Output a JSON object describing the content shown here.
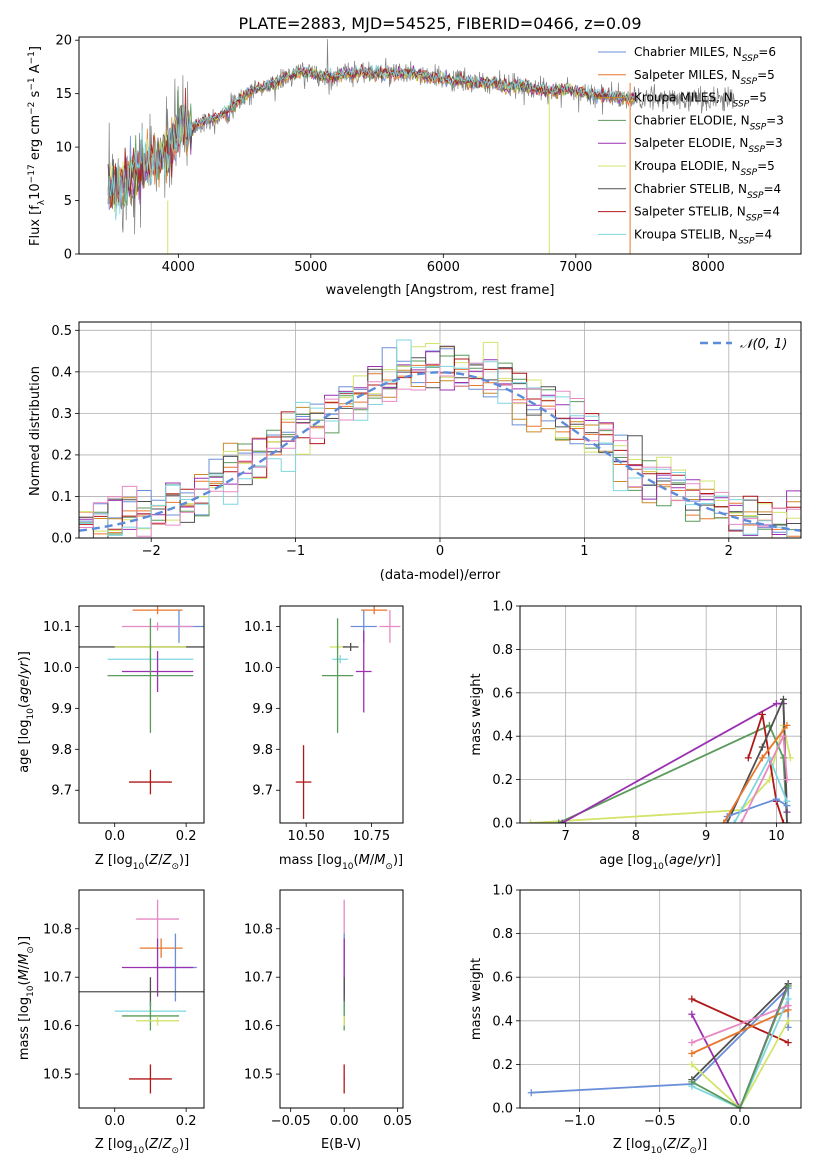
{
  "figure_title": "PLATE=2883, MJD=54525, FIBERID=0466, z=0.09",
  "colors": {
    "Chabrier MILES": "#6a8fd8",
    "Salpeter MILES": "#e8772e",
    "Kroupa MILES": "#c98a2a",
    "Chabrier ELODIE": "#5a9a5a",
    "Salpeter ELODIE": "#9b30b0",
    "Kroupa ELODIE": "#d4e36a",
    "Chabrier STELIB": "#505050",
    "Salpeter STELIB": "#b01818",
    "Kroupa STELIB": "#7fd6e0",
    "Pink": "#e78ac3",
    "Gray": "#808080",
    "Normal": "#5b8bd9"
  },
  "chart_data": [
    {
      "id": "spectrum",
      "type": "line",
      "title": "PLATE=2883, MJD=54525, FIBERID=0466, z=0.09",
      "xlabel": "wavelength [Angstrom, rest frame]",
      "ylabel": "Flux [f_λ 10^-17 erg cm^-2 s^-1 A^-1]",
      "ylabel_parts": {
        "a": "Flux [f",
        "b": "λ",
        "c": "10",
        "d": "−17",
        "e": " erg cm",
        "f": "−2",
        "g": " s",
        "h": "−1",
        "i": " A",
        "j": "−1",
        "k": "]"
      },
      "xlim": [
        3250,
        8700
      ],
      "ylim": [
        0,
        20.3
      ],
      "xticks": [
        4000,
        5000,
        6000,
        7000,
        8000
      ],
      "yticks": [
        0,
        5,
        10,
        15,
        20
      ],
      "continuum": [
        [
          3470,
          6.0
        ],
        [
          3550,
          6.5
        ],
        [
          3650,
          7.5
        ],
        [
          3750,
          8.3
        ],
        [
          3850,
          8.8
        ],
        [
          3950,
          10.0
        ],
        [
          4000,
          11.8
        ],
        [
          4100,
          11.8
        ],
        [
          4200,
          12.5
        ],
        [
          4300,
          12.8
        ],
        [
          4400,
          13.6
        ],
        [
          4500,
          14.8
        ],
        [
          4600,
          15.5
        ],
        [
          4700,
          15.8
        ],
        [
          4800,
          16.4
        ],
        [
          4900,
          17.0
        ],
        [
          5000,
          17.0
        ],
        [
          5100,
          16.6
        ],
        [
          5200,
          16.6
        ],
        [
          5300,
          16.9
        ],
        [
          5400,
          17.0
        ],
        [
          5500,
          16.9
        ],
        [
          5600,
          16.8
        ],
        [
          5700,
          16.9
        ],
        [
          5800,
          16.8
        ],
        [
          5900,
          16.5
        ],
        [
          6000,
          16.4
        ],
        [
          6100,
          16.2
        ],
        [
          6200,
          16.1
        ],
        [
          6300,
          16.0
        ],
        [
          6400,
          15.9
        ],
        [
          6500,
          15.6
        ],
        [
          6600,
          15.8
        ],
        [
          6700,
          15.4
        ],
        [
          6800,
          15.2
        ],
        [
          6900,
          15.4
        ],
        [
          7000,
          15.2
        ],
        [
          7100,
          15.0
        ],
        [
          7200,
          14.8
        ],
        [
          7300,
          14.7
        ],
        [
          7400,
          14.5
        ]
      ],
      "data_range": [
        3470,
        8200
      ],
      "models_range": [
        3470,
        7450
      ],
      "spike_lines": [
        {
          "x": 3920,
          "y1": 0,
          "y2": 5
        },
        {
          "x": 6800,
          "y1": 0,
          "y2": 15
        },
        {
          "x": 7410,
          "y1": 0,
          "y2": 16
        }
      ],
      "series": [
        {
          "name": "Chabrier MILES",
          "n": "6"
        },
        {
          "name": "Salpeter MILES",
          "n": "5"
        },
        {
          "name": "Kroupa MILES",
          "n": "5"
        },
        {
          "name": "Chabrier ELODIE",
          "n": "3"
        },
        {
          "name": "Salpeter ELODIE",
          "n": "3"
        },
        {
          "name": "Kroupa ELODIE",
          "n": "5"
        },
        {
          "name": "Chabrier STELIB",
          "n": "4"
        },
        {
          "name": "Salpeter STELIB",
          "n": "4"
        },
        {
          "name": "Kroupa STELIB",
          "n": "4"
        }
      ],
      "legend_placement": "upper-right",
      "legend_n_label": "N",
      "legend_n_sub": "SSP"
    },
    {
      "id": "residuals",
      "type": "step-histogram",
      "xlabel": "(data-model)/error",
      "ylabel": "Normed distribution",
      "xlim": [
        -2.5,
        2.5
      ],
      "ylim": [
        0,
        0.52
      ],
      "xticks": [
        -2,
        -1,
        0,
        1,
        2
      ],
      "xtick_labels": [
        "−2",
        "−1",
        "0",
        "1",
        "2"
      ],
      "yticks": [
        0.0,
        0.1,
        0.2,
        0.3,
        0.4,
        0.5
      ],
      "ytick_labels": [
        "0.0",
        "0.1",
        "0.2",
        "0.3",
        "0.4",
        "0.5"
      ],
      "grid": true,
      "bin_width": 0.1,
      "normal_label": "𝒩(0, 1)",
      "legend_placement": "upper-right"
    },
    {
      "id": "age_vs_Z",
      "type": "errorbar",
      "xlabel": "Z [log10(Z/Z⊙)]",
      "ylabel": "age [log10(age/yr)]",
      "xlim": [
        -0.1,
        0.25
      ],
      "ylim": [
        9.62,
        10.15
      ],
      "xticks": [
        0.0,
        0.2
      ],
      "xtick_labels": [
        "0.0",
        "0.2"
      ],
      "yticks": [
        9.7,
        9.8,
        9.9,
        10.0,
        10.1
      ],
      "ytick_labels": [
        "9.7",
        "9.8",
        "9.9",
        "10.0",
        "10.1"
      ],
      "points": [
        {
          "c": "Salpeter MILES",
          "x": 0.12,
          "y": 10.14,
          "ex": 0.07,
          "ey": 0.01
        },
        {
          "c": "Chabrier MILES",
          "x": 0.18,
          "y": 10.1,
          "ex": 0.07,
          "ey": 0.04
        },
        {
          "c": "Pink",
          "x": 0.12,
          "y": 10.1,
          "ex": 0.1,
          "ey": 0.01
        },
        {
          "c": "Chabrier STELIB",
          "x": 0.1,
          "y": 10.05,
          "ex": 0.2,
          "ey": 0.005
        },
        {
          "c": "Kroupa ELODIE",
          "x": 0.1,
          "y": 10.05,
          "ex": 0.1,
          "ey": 0.01
        },
        {
          "c": "Kroupa STELIB",
          "x": 0.1,
          "y": 10.02,
          "ex": 0.12,
          "ey": 0.01
        },
        {
          "c": "Salpeter ELODIE",
          "x": 0.12,
          "y": 9.99,
          "ex": 0.1,
          "ey": 0.05
        },
        {
          "c": "Chabrier ELODIE",
          "x": 0.1,
          "y": 9.98,
          "ex": 0.12,
          "ey": 0.14
        },
        {
          "c": "Salpeter STELIB",
          "x": 0.1,
          "y": 9.72,
          "ex": 0.06,
          "ey": 0.03
        }
      ]
    },
    {
      "id": "age_vs_mass",
      "type": "errorbar",
      "xlabel": "mass [log10(M/M⊙)]",
      "xlim": [
        10.4,
        10.87
      ],
      "ylim": [
        9.62,
        10.15
      ],
      "xticks": [
        10.5,
        10.75
      ],
      "xtick_labels": [
        "10.50",
        "10.75"
      ],
      "yticks": [
        9.7,
        9.8,
        9.9,
        10.0,
        10.1
      ],
      "ytick_labels": [
        "9.7",
        "9.8",
        "9.9",
        "10.0",
        "10.1"
      ],
      "points": [
        {
          "c": "Salpeter MILES",
          "x": 10.76,
          "y": 10.14,
          "ex": 0.05,
          "ey": 0.01
        },
        {
          "c": "Chabrier MILES",
          "x": 10.72,
          "y": 10.1,
          "ex": 0.05,
          "ey": 0.04
        },
        {
          "c": "Pink",
          "x": 10.82,
          "y": 10.1,
          "ex": 0.04,
          "ey": 0.04
        },
        {
          "c": "Kroupa ELODIE",
          "x": 10.62,
          "y": 10.05,
          "ex": 0.03,
          "ey": 0.01
        },
        {
          "c": "Chabrier STELIB",
          "x": 10.67,
          "y": 10.05,
          "ex": 0.03,
          "ey": 0.01
        },
        {
          "c": "Kroupa STELIB",
          "x": 10.63,
          "y": 10.02,
          "ex": 0.03,
          "ey": 0.01
        },
        {
          "c": "Salpeter ELODIE",
          "x": 10.72,
          "y": 9.99,
          "ex": 0.03,
          "ey": 0.1
        },
        {
          "c": "Chabrier ELODIE",
          "x": 10.62,
          "y": 9.98,
          "ex": 0.06,
          "ey": 0.14
        },
        {
          "c": "Salpeter STELIB",
          "x": 10.49,
          "y": 9.72,
          "ex": 0.03,
          "ey": 0.09
        }
      ]
    },
    {
      "id": "weight_vs_age",
      "type": "line",
      "xlabel": "age [log10(age/yr)]",
      "ylabel": "mass weight",
      "xlim": [
        6.35,
        10.35
      ],
      "ylim": [
        0,
        1.0
      ],
      "xticks": [
        7,
        8,
        9,
        10
      ],
      "xtick_labels": [
        "7",
        "8",
        "9",
        "10"
      ],
      "yticks": [
        0.0,
        0.2,
        0.4,
        0.6,
        0.8,
        1.0
      ],
      "ytick_labels": [
        "0.0",
        "0.2",
        "0.4",
        "0.6",
        "0.8",
        "1.0"
      ],
      "grid": true,
      "series": [
        {
          "c": "Kroupa ELODIE",
          "pts": [
            [
              6.5,
              0.0
            ],
            [
              9.5,
              0.06
            ],
            [
              9.9,
              0.2
            ],
            [
              10.1,
              0.45
            ],
            [
              10.2,
              0.3
            ]
          ]
        },
        {
          "c": "Chabrier ELODIE",
          "pts": [
            [
              6.9,
              0.0
            ],
            [
              9.9,
              0.45
            ],
            [
              10.1,
              0.3
            ],
            [
              10.15,
              0.0
            ]
          ]
        },
        {
          "c": "Salpeter ELODIE",
          "pts": [
            [
              6.95,
              0.0
            ],
            [
              10.0,
              0.55
            ],
            [
              10.1,
              0.55
            ],
            [
              10.15,
              0.05
            ]
          ]
        },
        {
          "c": "Salpeter STELIB",
          "pts": [
            [
              9.6,
              0.3
            ],
            [
              9.8,
              0.5
            ],
            [
              10.0,
              0.1
            ],
            [
              10.1,
              0.0
            ]
          ]
        },
        {
          "c": "Chabrier STELIB",
          "pts": [
            [
              9.3,
              0.0
            ],
            [
              9.8,
              0.35
            ],
            [
              10.1,
              0.57
            ],
            [
              10.15,
              0.0
            ]
          ]
        },
        {
          "c": "Chabrier MILES",
          "pts": [
            [
              9.3,
              0.03
            ],
            [
              10.0,
              0.11
            ],
            [
              10.15,
              0.08
            ]
          ]
        },
        {
          "c": "Salpeter MILES",
          "pts": [
            [
              9.25,
              0.0
            ],
            [
              9.8,
              0.3
            ],
            [
              10.15,
              0.45
            ]
          ]
        },
        {
          "c": "Kroupa STELIB",
          "pts": [
            [
              9.4,
              0.0
            ],
            [
              9.9,
              0.3
            ],
            [
              10.15,
              0.1
            ]
          ]
        },
        {
          "c": "Pink",
          "pts": [
            [
              9.5,
              0.0
            ],
            [
              10.1,
              0.4
            ],
            [
              10.15,
              0.2
            ]
          ]
        }
      ]
    },
    {
      "id": "mass_vs_Z",
      "type": "errorbar",
      "xlabel": "Z [log10(Z/Z⊙)]",
      "ylabel": "mass [log10(M/M⊙)]",
      "xlim": [
        -0.1,
        0.25
      ],
      "ylim": [
        10.43,
        10.88
      ],
      "xticks": [
        0.0,
        0.2
      ],
      "xtick_labels": [
        "0.0",
        "0.2"
      ],
      "yticks": [
        10.5,
        10.6,
        10.7,
        10.8
      ],
      "ytick_labels": [
        "10.5",
        "10.6",
        "10.7",
        "10.8"
      ],
      "points": [
        {
          "c": "Pink",
          "x": 0.12,
          "y": 10.82,
          "ex": 0.06,
          "ey": 0.04
        },
        {
          "c": "Salpeter MILES",
          "x": 0.13,
          "y": 10.76,
          "ex": 0.06,
          "ey": 0.02
        },
        {
          "c": "Chabrier MILES",
          "x": 0.17,
          "y": 10.72,
          "ex": 0.06,
          "ey": 0.07
        },
        {
          "c": "Salpeter ELODIE",
          "x": 0.12,
          "y": 10.72,
          "ex": 0.1,
          "ey": 0.06
        },
        {
          "c": "Chabrier STELIB",
          "x": 0.1,
          "y": 10.67,
          "ex": 0.2,
          "ey": 0.03
        },
        {
          "c": "Kroupa STELIB",
          "x": 0.1,
          "y": 10.63,
          "ex": 0.1,
          "ey": 0.02
        },
        {
          "c": "Chabrier ELODIE",
          "x": 0.1,
          "y": 10.62,
          "ex": 0.08,
          "ey": 0.03
        },
        {
          "c": "Kroupa ELODIE",
          "x": 0.12,
          "y": 10.61,
          "ex": 0.06,
          "ey": 0.01
        },
        {
          "c": "Salpeter STELIB",
          "x": 0.1,
          "y": 10.49,
          "ex": 0.06,
          "ey": 0.03
        }
      ]
    },
    {
      "id": "mass_vs_ebv",
      "type": "errorbar",
      "xlabel": "E(B-V)",
      "xlim": [
        -0.06,
        0.055
      ],
      "ylim": [
        10.43,
        10.88
      ],
      "xticks": [
        -0.05,
        0.0,
        0.05
      ],
      "xtick_labels": [
        "−0.05",
        "0.00",
        "0.05"
      ],
      "yticks": [
        10.5,
        10.6,
        10.7,
        10.8
      ],
      "ytick_labels": [
        "10.5",
        "10.6",
        "10.7",
        "10.8"
      ],
      "points": [
        {
          "c": "Pink",
          "x": 0.0,
          "y": 10.82,
          "ex": 0.0005,
          "ey": 0.04
        },
        {
          "c": "Salpeter MILES",
          "x": 0.0,
          "y": 10.76,
          "ex": 0.0005,
          "ey": 0.02
        },
        {
          "c": "Chabrier MILES",
          "x": 0.0,
          "y": 10.72,
          "ex": 0.0005,
          "ey": 0.07
        },
        {
          "c": "Salpeter ELODIE",
          "x": 0.0,
          "y": 10.72,
          "ex": 0.0005,
          "ey": 0.06
        },
        {
          "c": "Chabrier STELIB",
          "x": 0.0,
          "y": 10.67,
          "ex": 0.0005,
          "ey": 0.03
        },
        {
          "c": "Kroupa STELIB",
          "x": 0.0,
          "y": 10.63,
          "ex": 0.0005,
          "ey": 0.02
        },
        {
          "c": "Chabrier ELODIE",
          "x": 0.0,
          "y": 10.62,
          "ex": 0.0005,
          "ey": 0.03
        },
        {
          "c": "Kroupa ELODIE",
          "x": 0.0,
          "y": 10.61,
          "ex": 0.0005,
          "ey": 0.01
        },
        {
          "c": "Salpeter STELIB",
          "x": 0.0,
          "y": 10.49,
          "ex": 0.0005,
          "ey": 0.03
        }
      ]
    },
    {
      "id": "weight_vs_Z",
      "type": "line",
      "xlabel": "Z [log10(Z/Z⊙)]",
      "ylabel": "mass weight",
      "xlim": [
        -1.37,
        0.38
      ],
      "ylim": [
        0,
        1.0
      ],
      "xticks": [
        -1.0,
        -0.5,
        0.0
      ],
      "xtick_labels": [
        "−1.0",
        "−0.5",
        "0.0"
      ],
      "yticks": [
        0.0,
        0.2,
        0.4,
        0.6,
        0.8,
        1.0
      ],
      "ytick_labels": [
        "0.0",
        "0.2",
        "0.4",
        "0.6",
        "0.8",
        "1.0"
      ],
      "grid": true,
      "series": [
        {
          "c": "Chabrier MILES",
          "pts": [
            [
              -1.3,
              0.07
            ],
            [
              -0.3,
              0.11
            ],
            [
              0.3,
              0.55
            ],
            [
              0.3,
              0.37
            ]
          ]
        },
        {
          "c": "Salpeter STELIB",
          "pts": [
            [
              -0.3,
              0.5
            ],
            [
              0.3,
              0.3
            ]
          ]
        },
        {
          "c": "Salpeter ELODIE",
          "pts": [
            [
              -0.3,
              0.43
            ],
            [
              0.0,
              0.0
            ],
            [
              0.3,
              0.57
            ]
          ]
        },
        {
          "c": "Chabrier STELIB",
          "pts": [
            [
              -0.3,
              0.13
            ],
            [
              0.3,
              0.57
            ]
          ]
        },
        {
          "c": "Salpeter MILES",
          "pts": [
            [
              -0.3,
              0.25
            ],
            [
              0.3,
              0.45
            ]
          ]
        },
        {
          "c": "Kroupa ELODIE",
          "pts": [
            [
              -0.3,
              0.2
            ],
            [
              0.0,
              0.0
            ],
            [
              0.3,
              0.4
            ]
          ]
        },
        {
          "c": "Kroupa STELIB",
          "pts": [
            [
              -0.3,
              0.1
            ],
            [
              0.0,
              0.0
            ],
            [
              0.3,
              0.5
            ]
          ]
        },
        {
          "c": "Pink",
          "pts": [
            [
              -0.3,
              0.3
            ],
            [
              0.3,
              0.47
            ]
          ]
        },
        {
          "c": "Chabrier ELODIE",
          "pts": [
            [
              -0.3,
              0.12
            ],
            [
              0.0,
              0.0
            ],
            [
              0.3,
              0.56
            ]
          ]
        }
      ]
    }
  ]
}
